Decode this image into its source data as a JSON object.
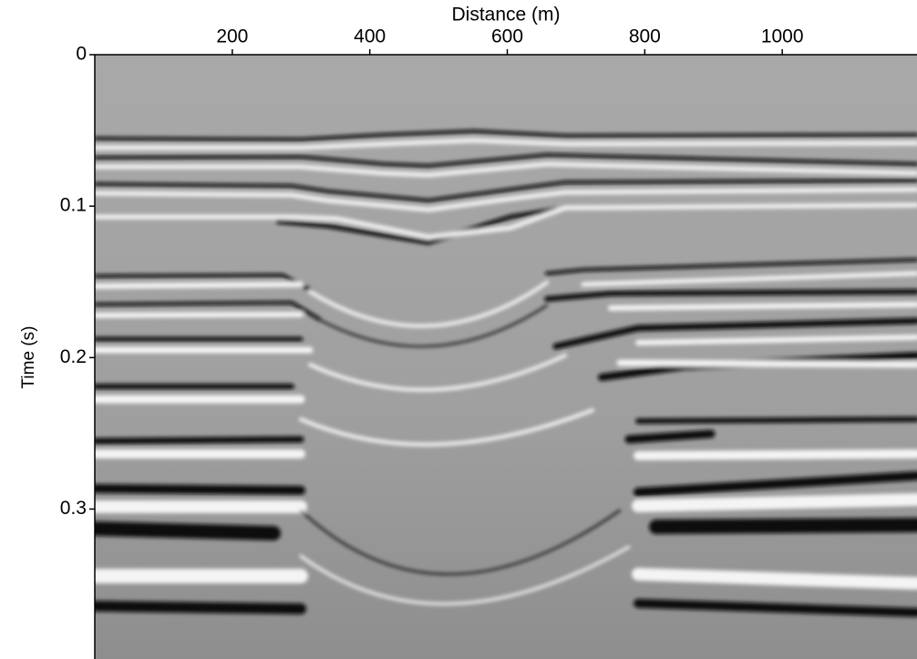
{
  "chart_data": {
    "type": "seismic-image",
    "xlabel": "Distance (m)",
    "ylabel": "Time (s)",
    "xlim": [
      0,
      1196
    ],
    "xticks": [
      200,
      400,
      600,
      800,
      1000
    ],
    "ylim": [
      0,
      0.399
    ],
    "yticks": [
      0,
      0.1,
      0.2,
      0.3
    ]
  }
}
